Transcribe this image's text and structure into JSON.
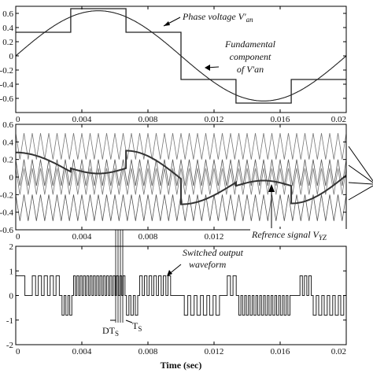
{
  "figure": {
    "xlabel": "Time (sec)",
    "x_tick_labels": [
      "0",
      "0.004",
      "0.008",
      "0.012",
      "0.016",
      "0.02"
    ]
  },
  "colors": {
    "trace": "#222222",
    "carrier": "#777777",
    "reference": "#333333",
    "axis": "#000000"
  },
  "chart_data": [
    {
      "type": "line",
      "xlim": [
        0,
        0.02
      ],
      "ylim": [
        -0.8,
        0.7
      ],
      "y_tick_labels": [
        "0.6",
        "0.4",
        "0.2",
        "0",
        "-0.2",
        "-0.4",
        "-0.6"
      ],
      "series": [
        {
          "name": "Phase voltage V'an",
          "x": [
            0,
            0.00333,
            0.00333,
            0.00667,
            0.00667,
            0.01,
            0.01,
            0.01333,
            0.01333,
            0.01667,
            0.01667,
            0.02
          ],
          "y": [
            0.333,
            0.333,
            0.667,
            0.667,
            0.333,
            0.333,
            -0.333,
            -0.333,
            -0.667,
            -0.667,
            -0.333,
            -0.333
          ]
        },
        {
          "name": "Fundamental component of V'an",
          "amplitude": 0.637,
          "frequency_hz": 50,
          "x": [
            0,
            0.001,
            0.002,
            0.003,
            0.004,
            0.005,
            0.006,
            0.007,
            0.008,
            0.009,
            0.01,
            0.011,
            0.012,
            0.013,
            0.014,
            0.015,
            0.016,
            0.017,
            0.018,
            0.019,
            0.02
          ],
          "y": [
            0,
            0.197,
            0.374,
            0.515,
            0.606,
            0.637,
            0.606,
            0.515,
            0.374,
            0.197,
            0,
            -0.197,
            -0.374,
            -0.515,
            -0.606,
            -0.637,
            -0.606,
            -0.515,
            -0.374,
            -0.197,
            0
          ]
        }
      ],
      "annotations": [
        {
          "text_parts": [
            "Phase voltage V",
            "'",
            "an"
          ]
        },
        {
          "lines": [
            "Fundamental",
            "component",
            "of V'an"
          ]
        }
      ]
    },
    {
      "type": "line",
      "xlim": [
        0,
        0.02
      ],
      "ylim": [
        -0.6,
        0.6
      ],
      "y_tick_labels": [
        "0.6",
        "0.4",
        "0.2",
        "0",
        "-0.2",
        "-0.4",
        "-0.6"
      ],
      "carriers": {
        "count": 4,
        "levels": [
          [
            0.2,
            0.5
          ],
          [
            -0.1,
            0.2
          ],
          [
            -0.2,
            0.1
          ],
          [
            -0.5,
            -0.2
          ]
        ],
        "switching_frequency_hz": 2000
      },
      "series": [
        {
          "name": "Refrence signal V_YZ",
          "description": "difference of two fundamentals, rescaled each interval",
          "x": [
            0,
            0.00333,
            0.00333,
            0.005,
            0.00667,
            0.00667,
            0.01,
            0.01,
            0.01333,
            0.01333,
            0.015,
            0.01667,
            0.01667,
            0.02
          ],
          "y": [
            0.28,
            0.06,
            0.1,
            0.04,
            0.1,
            0.3,
            -0.02,
            -0.31,
            -0.06,
            -0.1,
            -0.04,
            -0.1,
            -0.3,
            0.02
          ]
        }
      ],
      "annotations": [
        {
          "text_parts": [
            "Refrence signal V",
            "YZ"
          ]
        }
      ]
    },
    {
      "type": "line",
      "xlim": [
        0,
        0.02
      ],
      "ylim": [
        -2,
        2
      ],
      "y_tick_labels": [
        "2",
        "1",
        "0",
        "-1",
        "-2"
      ],
      "series": [
        {
          "name": "Switched output waveform",
          "levels": [
            -0.8,
            0,
            0.8
          ],
          "pulse_groups": [
            {
              "from": 0,
              "to": 0.001,
              "level": 0.8,
              "pulses": 1
            },
            {
              "from": 0.001,
              "to": 0.0028,
              "level": 0.8,
              "pulses": 5
            },
            {
              "from": 0.0028,
              "to": 0.0035,
              "level": -0.8,
              "pulses": 3
            },
            {
              "from": 0.0035,
              "to": 0.0067,
              "level": 0.8,
              "pulses": 16
            },
            {
              "from": 0.0067,
              "to": 0.0075,
              "level": -0.8,
              "pulses": 3
            },
            {
              "from": 0.0075,
              "to": 0.0095,
              "level": 0.8,
              "pulses": 7
            },
            {
              "from": 0.0102,
              "to": 0.0125,
              "level": -0.8,
              "pulses": 6
            },
            {
              "from": 0.0128,
              "to": 0.0135,
              "level": 0.8,
              "pulses": 2
            },
            {
              "from": 0.0135,
              "to": 0.0167,
              "level": -0.8,
              "pulses": 14
            },
            {
              "from": 0.0172,
              "to": 0.018,
              "level": 0.8,
              "pulses": 3
            },
            {
              "from": 0.018,
              "to": 0.02,
              "level": -0.8,
              "pulses": 6
            }
          ]
        }
      ],
      "annotations": [
        {
          "lines": [
            "Switched output",
            "waveform"
          ]
        },
        {
          "text_parts": [
            "DT",
            "S"
          ]
        },
        {
          "text_parts": [
            "T",
            "S"
          ]
        }
      ]
    }
  ]
}
